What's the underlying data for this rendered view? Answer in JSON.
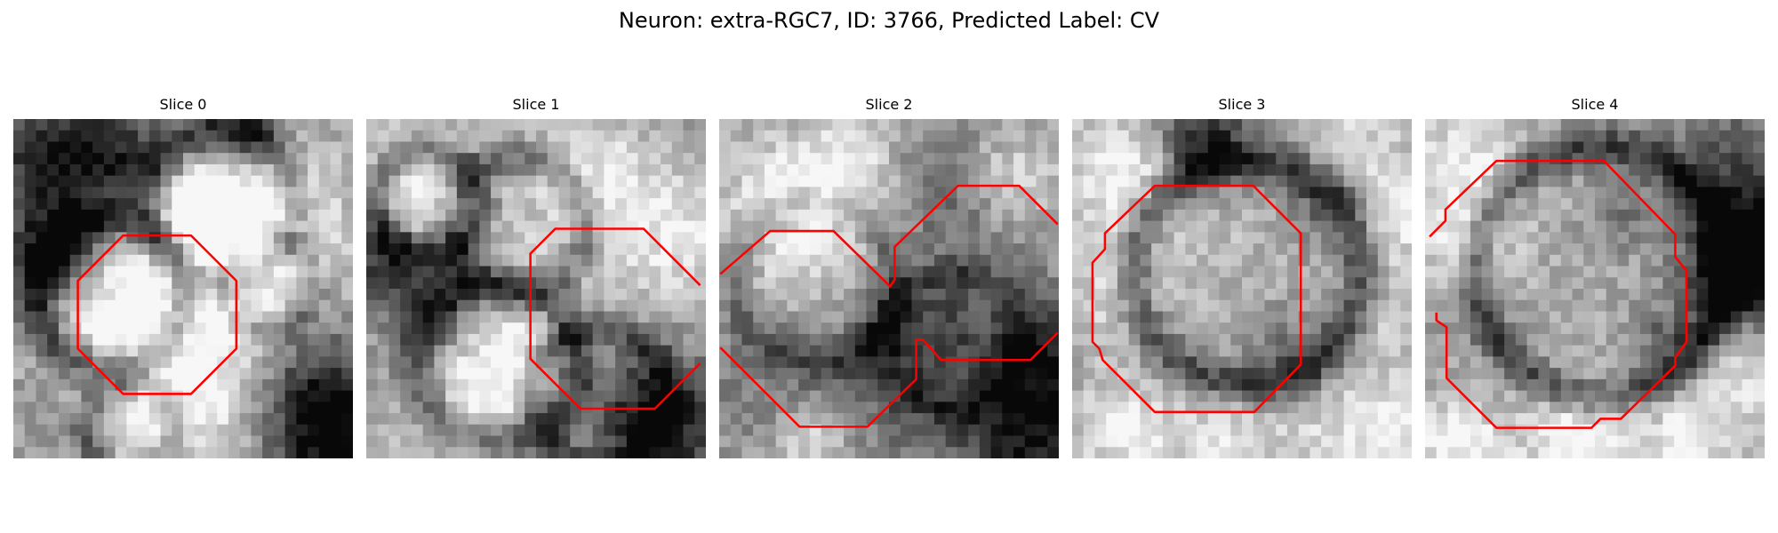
{
  "figure": {
    "title": "Neuron: extra-RGC7, ID: 3766, Predicted Label: CV",
    "outline_color": "#ff0000"
  },
  "panels": [
    {
      "label": "Slice 0"
    },
    {
      "label": "Slice 1"
    },
    {
      "label": "Slice 2"
    },
    {
      "label": "Slice 3"
    },
    {
      "label": "Slice 4"
    }
  ]
}
